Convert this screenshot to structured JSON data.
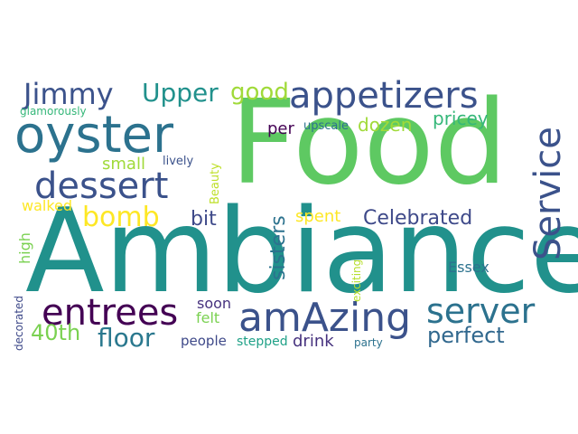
{
  "wordcloud": {
    "background": "#ffffff",
    "words": {
      "food": {
        "text": "Food",
        "color": "#5ec962"
      },
      "ambiance": {
        "text": "Ambiance",
        "color": "#21918c"
      },
      "oyster": {
        "text": "oyster",
        "color": "#2c728e"
      },
      "appetizers": {
        "text": "appetizers",
        "color": "#3b528b"
      },
      "service": {
        "text": "Service",
        "color": "#3b528b"
      },
      "jimmy": {
        "text": "Jimmy",
        "color": "#3b528b"
      },
      "upper": {
        "text": "Upper",
        "color": "#21918c"
      },
      "good": {
        "text": "good",
        "color": "#a0da39"
      },
      "glamorously": {
        "text": "glamorously",
        "color": "#35b779"
      },
      "per": {
        "text": "per",
        "color": "#440154"
      },
      "upscale": {
        "text": "upscale",
        "color": "#2c728e"
      },
      "dozen": {
        "text": "dozen",
        "color": "#a0da39"
      },
      "pricey": {
        "text": "pricey",
        "color": "#35b779"
      },
      "small": {
        "text": "small",
        "color": "#a0da39"
      },
      "lively": {
        "text": "lively",
        "color": "#3b528b"
      },
      "beauty": {
        "text": "Beauty",
        "color": "#bddf26"
      },
      "dessert": {
        "text": "dessert",
        "color": "#3b528b"
      },
      "sisters": {
        "text": "sisters",
        "color": "#2c728e"
      },
      "walked": {
        "text": "walked",
        "color": "#fde725"
      },
      "bomb": {
        "text": "bomb",
        "color": "#fde725"
      },
      "bit": {
        "text": "bit",
        "color": "#3e4989"
      },
      "spent": {
        "text": "spent",
        "color": "#fde725"
      },
      "celebrated": {
        "text": "Celebrated",
        "color": "#3e4989"
      },
      "high": {
        "text": "high",
        "color": "#7ad151"
      },
      "essex": {
        "text": "Essex",
        "color": "#2c728e"
      },
      "exciting": {
        "text": "exciting",
        "color": "#b5de2b"
      },
      "entrees": {
        "text": "entrees",
        "color": "#440154"
      },
      "soon": {
        "text": "soon",
        "color": "#46327e"
      },
      "amazing": {
        "text": "amAzing",
        "color": "#3b528b"
      },
      "server": {
        "text": "server",
        "color": "#2c728e"
      },
      "felt": {
        "text": "felt",
        "color": "#7ad151"
      },
      "decorated": {
        "text": "decorated",
        "color": "#3e4989"
      },
      "fortieth": {
        "text": "40th",
        "color": "#7ad151"
      },
      "floor": {
        "text": "floor",
        "color": "#2a788e"
      },
      "perfect": {
        "text": "perfect",
        "color": "#31688e"
      },
      "people": {
        "text": "people",
        "color": "#3e4989"
      },
      "stepped": {
        "text": "stepped",
        "color": "#1fa187"
      },
      "drink": {
        "text": "drink",
        "color": "#46327e"
      },
      "party": {
        "text": "party",
        "color": "#2c728e"
      }
    }
  }
}
